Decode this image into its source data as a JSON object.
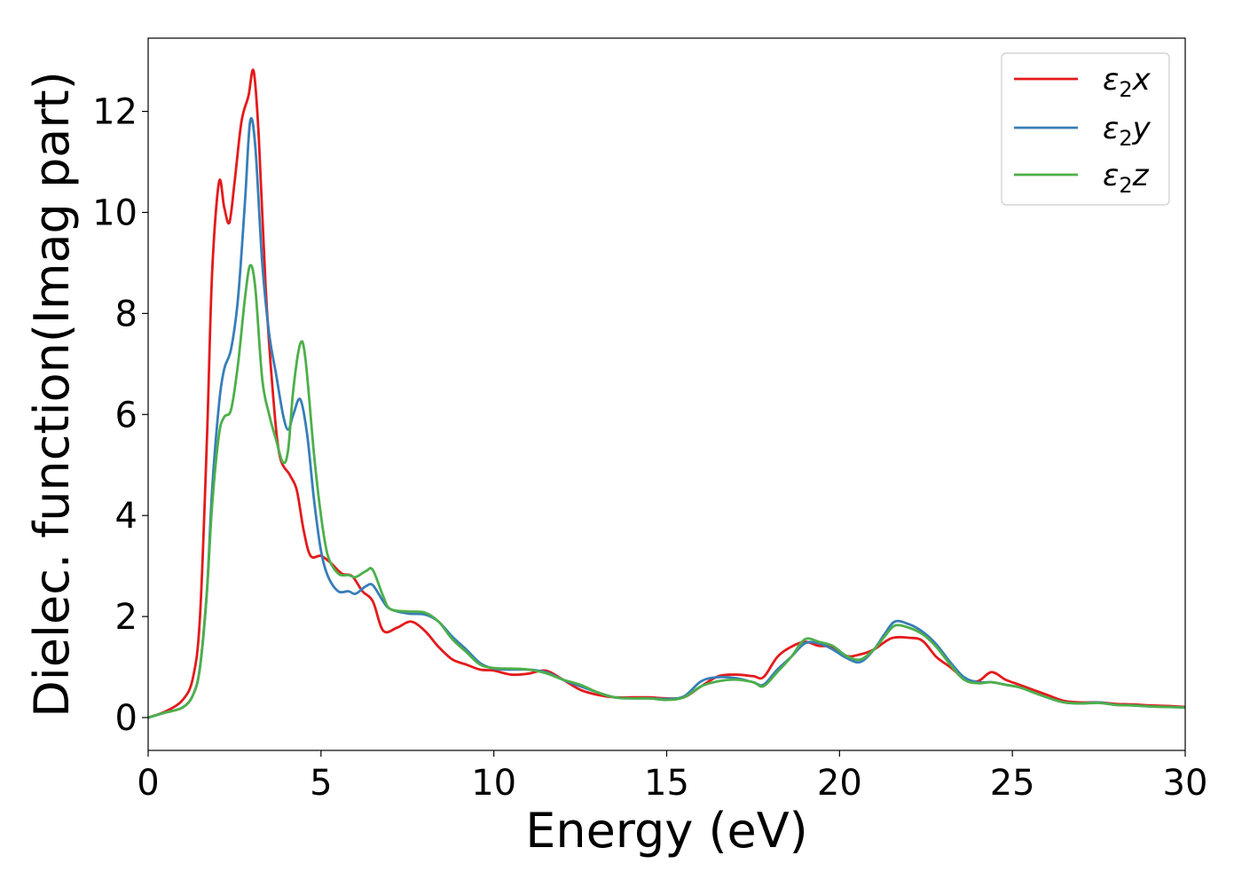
{
  "chart_data": {
    "type": "line",
    "title": "",
    "xlabel": "Energy (eV)",
    "ylabel": "Dielec. function(Imag part)",
    "xlim": [
      0,
      30
    ],
    "ylim": [
      -0.65,
      13.45
    ],
    "xticks": [
      0,
      5,
      10,
      15,
      20,
      25,
      30
    ],
    "yticks": [
      0,
      2,
      4,
      6,
      8,
      10,
      12
    ],
    "grid": false,
    "legend_position": "top-right",
    "series": [
      {
        "name": "ε₂x",
        "name_base": "ε",
        "name_sub": "2",
        "name_suffix": "x",
        "color": "#e41a1c",
        "points": [
          [
            0,
            0
          ],
          [
            0.5,
            0.12
          ],
          [
            1.0,
            0.35
          ],
          [
            1.3,
            0.8
          ],
          [
            1.5,
            2.0
          ],
          [
            1.7,
            5.5
          ],
          [
            1.85,
            8.8
          ],
          [
            2.05,
            10.6
          ],
          [
            2.2,
            10.1
          ],
          [
            2.35,
            9.8
          ],
          [
            2.5,
            10.6
          ],
          [
            2.7,
            11.8
          ],
          [
            2.9,
            12.3
          ],
          [
            3.05,
            12.8
          ],
          [
            3.2,
            11.5
          ],
          [
            3.4,
            8.5
          ],
          [
            3.6,
            6.5
          ],
          [
            3.8,
            5.2
          ],
          [
            4.1,
            4.8
          ],
          [
            4.3,
            4.5
          ],
          [
            4.5,
            3.7
          ],
          [
            4.7,
            3.2
          ],
          [
            5.0,
            3.2
          ],
          [
            5.3,
            3.05
          ],
          [
            5.6,
            2.85
          ],
          [
            5.9,
            2.8
          ],
          [
            6.2,
            2.5
          ],
          [
            6.5,
            2.3
          ],
          [
            6.8,
            1.72
          ],
          [
            7.2,
            1.78
          ],
          [
            7.6,
            1.9
          ],
          [
            8.0,
            1.72
          ],
          [
            8.4,
            1.4
          ],
          [
            8.8,
            1.15
          ],
          [
            9.2,
            1.05
          ],
          [
            9.6,
            0.95
          ],
          [
            10.0,
            0.93
          ],
          [
            10.5,
            0.85
          ],
          [
            11.0,
            0.87
          ],
          [
            11.5,
            0.93
          ],
          [
            12.0,
            0.75
          ],
          [
            12.5,
            0.55
          ],
          [
            13.0,
            0.45
          ],
          [
            13.5,
            0.4
          ],
          [
            14.0,
            0.4
          ],
          [
            14.5,
            0.4
          ],
          [
            15.0,
            0.38
          ],
          [
            15.5,
            0.4
          ],
          [
            16.0,
            0.62
          ],
          [
            16.5,
            0.82
          ],
          [
            17.0,
            0.85
          ],
          [
            17.5,
            0.82
          ],
          [
            17.8,
            0.8
          ],
          [
            18.2,
            1.2
          ],
          [
            18.6,
            1.4
          ],
          [
            19.0,
            1.5
          ],
          [
            19.4,
            1.42
          ],
          [
            19.8,
            1.4
          ],
          [
            20.2,
            1.22
          ],
          [
            20.6,
            1.25
          ],
          [
            21.0,
            1.35
          ],
          [
            21.5,
            1.57
          ],
          [
            22.0,
            1.58
          ],
          [
            22.4,
            1.52
          ],
          [
            22.8,
            1.2
          ],
          [
            23.2,
            1.0
          ],
          [
            23.6,
            0.78
          ],
          [
            24.0,
            0.72
          ],
          [
            24.4,
            0.9
          ],
          [
            24.8,
            0.75
          ],
          [
            25.2,
            0.65
          ],
          [
            25.6,
            0.55
          ],
          [
            26.0,
            0.45
          ],
          [
            26.5,
            0.33
          ],
          [
            27.0,
            0.3
          ],
          [
            27.5,
            0.3
          ],
          [
            28.0,
            0.27
          ],
          [
            28.5,
            0.26
          ],
          [
            29.0,
            0.24
          ],
          [
            29.5,
            0.23
          ],
          [
            30.0,
            0.21
          ]
        ]
      },
      {
        "name": "ε₂y",
        "name_base": "ε",
        "name_sub": "2",
        "name_suffix": "y",
        "color": "#377eb8",
        "points": [
          [
            0,
            0
          ],
          [
            0.5,
            0.1
          ],
          [
            1.0,
            0.2
          ],
          [
            1.3,
            0.45
          ],
          [
            1.5,
            1.0
          ],
          [
            1.7,
            2.5
          ],
          [
            1.85,
            4.5
          ],
          [
            2.05,
            6.2
          ],
          [
            2.2,
            6.9
          ],
          [
            2.4,
            7.3
          ],
          [
            2.6,
            8.3
          ],
          [
            2.8,
            10.2
          ],
          [
            2.95,
            11.8
          ],
          [
            3.1,
            11.3
          ],
          [
            3.3,
            9.0
          ],
          [
            3.5,
            7.6
          ],
          [
            3.7,
            6.8
          ],
          [
            3.9,
            6.0
          ],
          [
            4.05,
            5.7
          ],
          [
            4.2,
            6.0
          ],
          [
            4.4,
            6.3
          ],
          [
            4.6,
            5.6
          ],
          [
            4.8,
            4.3
          ],
          [
            5.0,
            3.3
          ],
          [
            5.2,
            2.8
          ],
          [
            5.5,
            2.5
          ],
          [
            5.8,
            2.5
          ],
          [
            6.0,
            2.45
          ],
          [
            6.3,
            2.6
          ],
          [
            6.5,
            2.62
          ],
          [
            6.8,
            2.3
          ],
          [
            7.0,
            2.15
          ],
          [
            7.5,
            2.06
          ],
          [
            8.0,
            2.04
          ],
          [
            8.4,
            1.9
          ],
          [
            8.8,
            1.6
          ],
          [
            9.2,
            1.35
          ],
          [
            9.6,
            1.08
          ],
          [
            10.0,
            0.97
          ],
          [
            10.5,
            0.95
          ],
          [
            11.0,
            0.95
          ],
          [
            11.5,
            0.9
          ],
          [
            12.0,
            0.75
          ],
          [
            12.5,
            0.62
          ],
          [
            13.0,
            0.5
          ],
          [
            13.5,
            0.4
          ],
          [
            14.0,
            0.38
          ],
          [
            14.5,
            0.38
          ],
          [
            15.0,
            0.37
          ],
          [
            15.5,
            0.42
          ],
          [
            16.0,
            0.72
          ],
          [
            16.5,
            0.8
          ],
          [
            17.0,
            0.78
          ],
          [
            17.5,
            0.7
          ],
          [
            17.8,
            0.65
          ],
          [
            18.2,
            0.95
          ],
          [
            18.6,
            1.2
          ],
          [
            19.0,
            1.47
          ],
          [
            19.4,
            1.47
          ],
          [
            19.8,
            1.35
          ],
          [
            20.2,
            1.18
          ],
          [
            20.6,
            1.1
          ],
          [
            21.0,
            1.35
          ],
          [
            21.3,
            1.65
          ],
          [
            21.6,
            1.9
          ],
          [
            22.0,
            1.85
          ],
          [
            22.4,
            1.7
          ],
          [
            22.8,
            1.45
          ],
          [
            23.2,
            1.1
          ],
          [
            23.6,
            0.8
          ],
          [
            24.0,
            0.7
          ],
          [
            24.4,
            0.7
          ],
          [
            24.8,
            0.65
          ],
          [
            25.2,
            0.6
          ],
          [
            25.6,
            0.5
          ],
          [
            26.0,
            0.4
          ],
          [
            26.5,
            0.3
          ],
          [
            27.0,
            0.28
          ],
          [
            27.5,
            0.3
          ],
          [
            28.0,
            0.25
          ],
          [
            28.5,
            0.24
          ],
          [
            29.0,
            0.22
          ],
          [
            29.5,
            0.21
          ],
          [
            30.0,
            0.2
          ]
        ]
      },
      {
        "name": "ε₂z",
        "name_base": "ε",
        "name_sub": "2",
        "name_suffix": "z",
        "color": "#4daf4a",
        "points": [
          [
            0,
            0
          ],
          [
            0.5,
            0.1
          ],
          [
            1.0,
            0.2
          ],
          [
            1.3,
            0.45
          ],
          [
            1.5,
            1.0
          ],
          [
            1.7,
            2.5
          ],
          [
            1.85,
            4.2
          ],
          [
            2.05,
            5.6
          ],
          [
            2.2,
            5.95
          ],
          [
            2.4,
            6.1
          ],
          [
            2.6,
            7.0
          ],
          [
            2.8,
            8.3
          ],
          [
            2.95,
            8.95
          ],
          [
            3.1,
            8.5
          ],
          [
            3.3,
            6.7
          ],
          [
            3.5,
            6.0
          ],
          [
            3.7,
            5.5
          ],
          [
            3.9,
            5.05
          ],
          [
            4.05,
            5.3
          ],
          [
            4.2,
            6.5
          ],
          [
            4.4,
            7.4
          ],
          [
            4.55,
            7.1
          ],
          [
            4.8,
            5.2
          ],
          [
            5.0,
            4.0
          ],
          [
            5.2,
            3.2
          ],
          [
            5.5,
            2.85
          ],
          [
            5.8,
            2.82
          ],
          [
            6.0,
            2.78
          ],
          [
            6.3,
            2.9
          ],
          [
            6.5,
            2.92
          ],
          [
            6.8,
            2.4
          ],
          [
            7.0,
            2.15
          ],
          [
            7.5,
            2.1
          ],
          [
            8.0,
            2.08
          ],
          [
            8.4,
            1.9
          ],
          [
            8.8,
            1.55
          ],
          [
            9.2,
            1.3
          ],
          [
            9.6,
            1.05
          ],
          [
            10.0,
            0.98
          ],
          [
            10.5,
            0.97
          ],
          [
            11.0,
            0.95
          ],
          [
            11.5,
            0.88
          ],
          [
            12.0,
            0.75
          ],
          [
            12.5,
            0.65
          ],
          [
            13.0,
            0.5
          ],
          [
            13.5,
            0.4
          ],
          [
            14.0,
            0.38
          ],
          [
            14.5,
            0.38
          ],
          [
            15.0,
            0.35
          ],
          [
            15.5,
            0.4
          ],
          [
            16.0,
            0.62
          ],
          [
            16.5,
            0.72
          ],
          [
            17.0,
            0.75
          ],
          [
            17.5,
            0.7
          ],
          [
            17.8,
            0.62
          ],
          [
            18.2,
            0.9
          ],
          [
            18.6,
            1.2
          ],
          [
            19.0,
            1.55
          ],
          [
            19.4,
            1.5
          ],
          [
            19.8,
            1.42
          ],
          [
            20.2,
            1.22
          ],
          [
            20.6,
            1.15
          ],
          [
            21.0,
            1.35
          ],
          [
            21.3,
            1.6
          ],
          [
            21.6,
            1.82
          ],
          [
            22.0,
            1.78
          ],
          [
            22.4,
            1.65
          ],
          [
            22.8,
            1.4
          ],
          [
            23.2,
            1.05
          ],
          [
            23.6,
            0.75
          ],
          [
            24.0,
            0.68
          ],
          [
            24.4,
            0.7
          ],
          [
            24.8,
            0.65
          ],
          [
            25.2,
            0.6
          ],
          [
            25.6,
            0.5
          ],
          [
            26.0,
            0.4
          ],
          [
            26.5,
            0.3
          ],
          [
            27.0,
            0.28
          ],
          [
            27.5,
            0.29
          ],
          [
            28.0,
            0.25
          ],
          [
            28.5,
            0.24
          ],
          [
            29.0,
            0.22
          ],
          [
            29.5,
            0.21
          ],
          [
            30.0,
            0.2
          ]
        ]
      }
    ]
  }
}
